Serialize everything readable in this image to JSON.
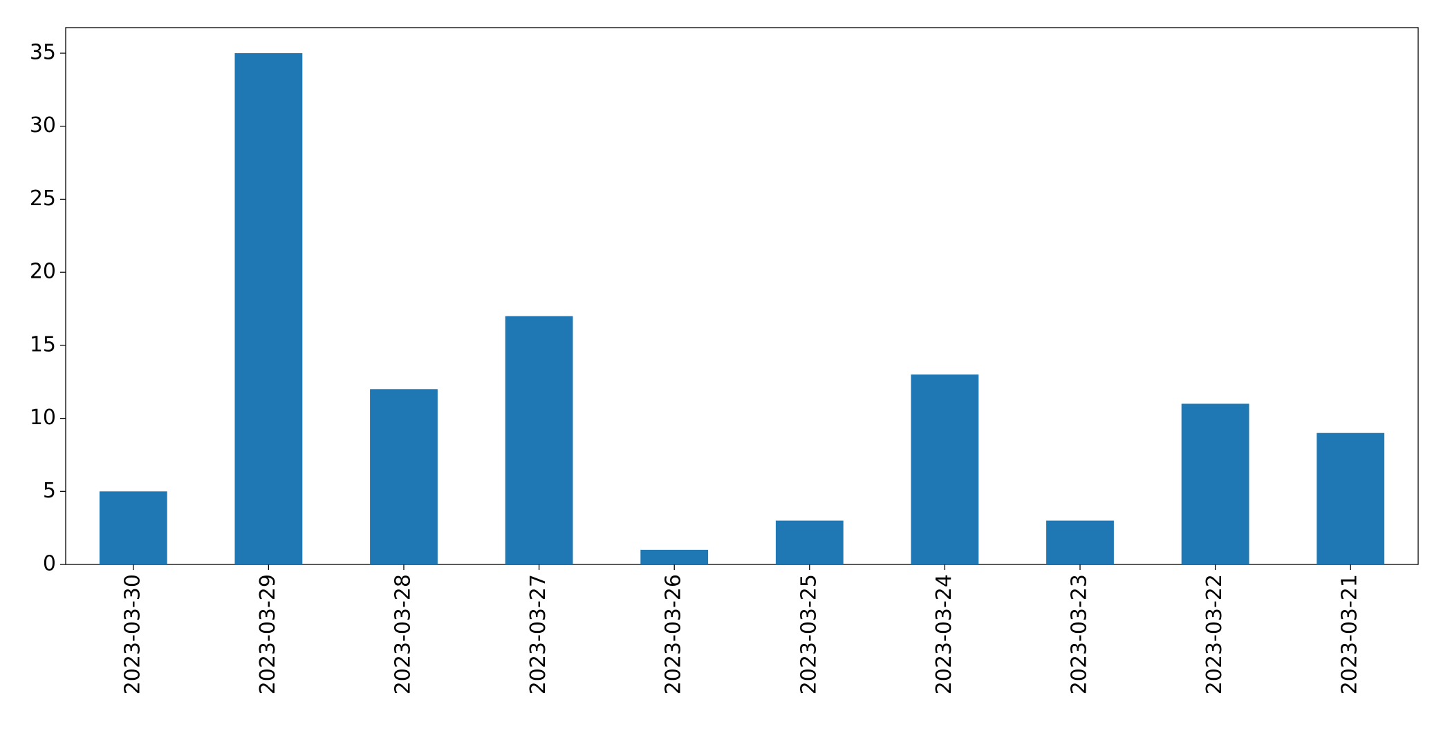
{
  "chart_data": {
    "type": "bar",
    "categories": [
      "2023-03-30",
      "2023-03-29",
      "2023-03-28",
      "2023-03-27",
      "2023-03-26",
      "2023-03-25",
      "2023-03-24",
      "2023-03-23",
      "2023-03-22",
      "2023-03-21"
    ],
    "values": [
      5,
      35,
      12,
      17,
      1,
      3,
      13,
      3,
      11,
      9
    ],
    "color": "#1f77b4",
    "ylim": [
      0,
      36.75
    ],
    "yticks": [
      0,
      5,
      10,
      15,
      20,
      25,
      30,
      35
    ],
    "grid": false
  }
}
